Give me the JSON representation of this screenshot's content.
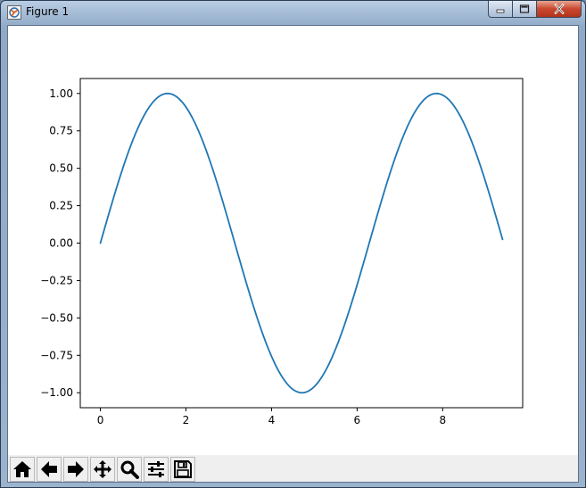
{
  "window": {
    "title": "Figure 1",
    "app_icon": "matplotlib-figure-icon",
    "controls": {
      "minimize_icon": "minimize-icon",
      "maximize_icon": "maximize-icon",
      "close_icon": "close-icon"
    }
  },
  "toolbar": {
    "buttons": [
      {
        "name": "home-button",
        "icon": "home-icon"
      },
      {
        "name": "back-button",
        "icon": "arrow-left-icon"
      },
      {
        "name": "forward-button",
        "icon": "arrow-right-icon"
      },
      {
        "name": "pan-button",
        "icon": "move-icon"
      },
      {
        "name": "zoom-button",
        "icon": "magnifier-icon"
      },
      {
        "name": "configure-subplots-button",
        "icon": "sliders-icon"
      },
      {
        "name": "save-button",
        "icon": "floppy-disk-icon"
      }
    ]
  },
  "colors": {
    "line": "#1f77b4",
    "axes_frame": "#000000",
    "figure_bg": "#ffffff",
    "toolbar_bg": "#efefef"
  },
  "chart_data": {
    "type": "line",
    "title": "",
    "xlabel": "",
    "ylabel": "",
    "xlim": [
      -0.47,
      9.87
    ],
    "ylim": [
      -1.1,
      1.1
    ],
    "xticks": [
      0,
      2,
      4,
      6,
      8
    ],
    "xtick_labels": [
      "0",
      "2",
      "4",
      "6",
      "8"
    ],
    "yticks": [
      1.0,
      0.75,
      0.5,
      0.25,
      0.0,
      -0.25,
      -0.5,
      -0.75,
      -1.0
    ],
    "ytick_labels": [
      "1.00",
      "0.75",
      "0.50",
      "0.25",
      "0.00",
      "−0.25",
      "−0.50",
      "−0.75",
      "−1.00"
    ],
    "grid": false,
    "legend": false,
    "series": [
      {
        "function": "sin",
        "x_range": [
          0,
          9.4
        ],
        "x": [
          0,
          0.5,
          1.0,
          1.5708,
          2.0,
          2.5,
          3.0,
          3.5,
          4.0,
          4.7124,
          5.0,
          5.5,
          6.0,
          6.5,
          7.0,
          7.5,
          7.854,
          8.0,
          8.5,
          9.0,
          9.4
        ],
        "values": [
          0.0,
          0.479,
          0.841,
          1.0,
          0.909,
          0.598,
          0.141,
          -0.351,
          -0.757,
          -1.0,
          -0.959,
          -0.706,
          -0.279,
          0.215,
          0.657,
          0.938,
          1.0,
          0.989,
          0.798,
          0.412,
          0.025
        ]
      }
    ]
  }
}
